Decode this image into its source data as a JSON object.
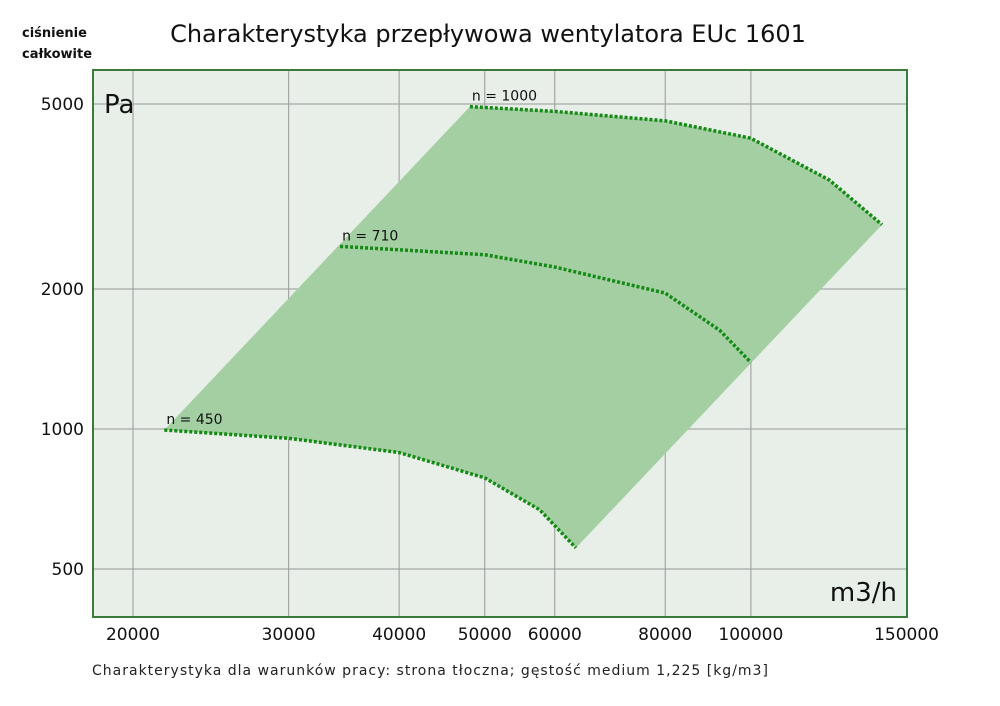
{
  "chart_data": {
    "type": "line",
    "title": "Charakterystyka przepływowa wentylatora EUc 1601",
    "ylabel_lines": [
      "ciśnienie",
      "całkowite"
    ],
    "y_unit": "Pa",
    "x_unit": "m3/h",
    "footer": "Charakterystyka dla warunków pracy: strona tłoczna; gęstość medium 1,225 [kg/m3]",
    "x_scale": "log",
    "y_scale": "log",
    "xlim": [
      18000,
      150000
    ],
    "ylim": [
      395,
      5900
    ],
    "x_ticks": [
      20000,
      30000,
      40000,
      50000,
      60000,
      80000,
      100000,
      150000
    ],
    "y_ticks": [
      500,
      1000,
      2000,
      5000
    ],
    "grid": true,
    "colors": {
      "area": "#a3cfa3",
      "curve": "#138a13",
      "plot_bg": "#e8eee8",
      "frame": "#3a7a3a",
      "grid": "#999999"
    },
    "series": [
      {
        "name": "n = 450",
        "x": [
          21700,
          30000,
          40000,
          50000,
          57700,
          63400
        ],
        "y": [
          995,
          955,
          890,
          785,
          670,
          555
        ]
      },
      {
        "name": "n = 710",
        "x": [
          34300,
          50000,
          60000,
          80000,
          92200,
          100000
        ],
        "y": [
          2470,
          2370,
          2230,
          1960,
          1630,
          1390
        ]
      },
      {
        "name": "n = 1000",
        "x": [
          48100,
          60000,
          80000,
          100000,
          122700,
          140700
        ],
        "y": [
          4935,
          4820,
          4600,
          4220,
          3430,
          2750
        ]
      }
    ]
  }
}
